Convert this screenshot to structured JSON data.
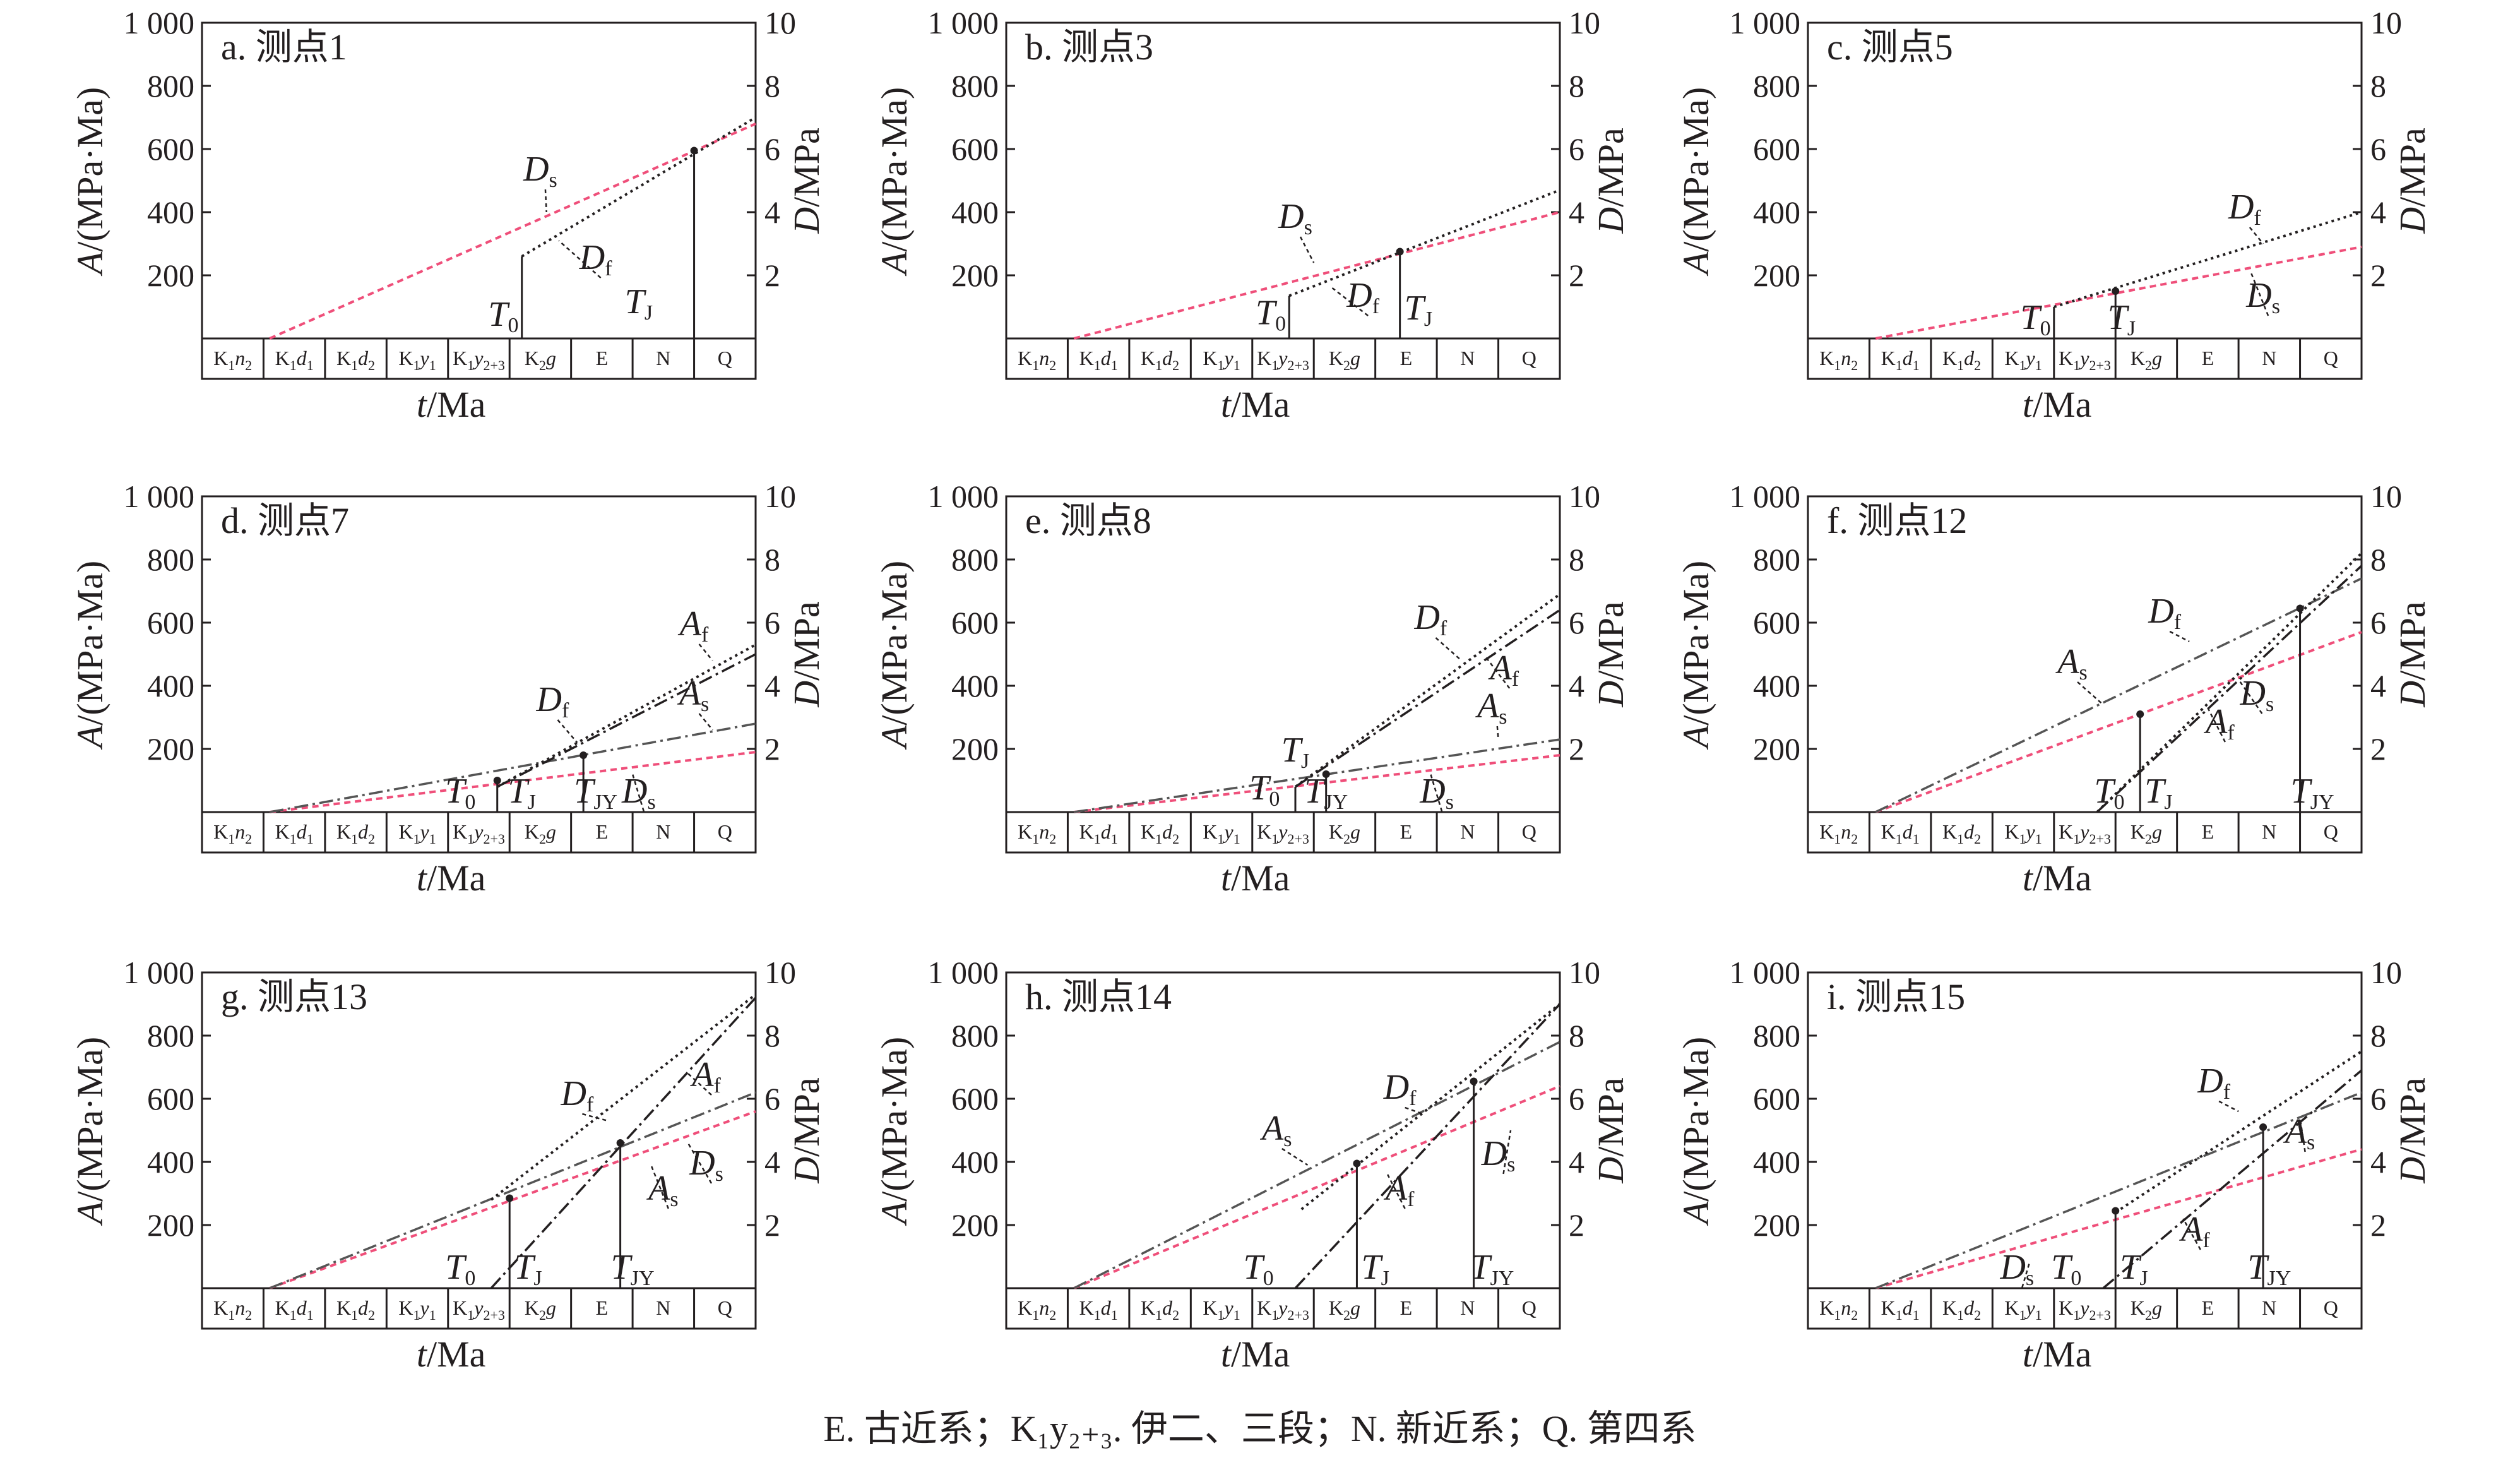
{
  "caption": "E. 古近系；K₁y₂₊₃. 伊二、三段；N. 新近系；Q. 第四系",
  "colors": {
    "Ds": "#ef4f7a",
    "Df": "#231f20",
    "As": "#555555",
    "Af": "#231f20",
    "frame": "#231f20"
  },
  "axes": {
    "left_label": "A/(MPa·Ma)",
    "right_label": "D/MPa",
    "x_label": "t/Ma",
    "left_ticks": [
      "200",
      "400",
      "600",
      "800",
      "1 000"
    ],
    "right_ticks": [
      "2",
      "4",
      "6",
      "8",
      "10"
    ],
    "strata": [
      {
        "base": "K",
        "sub": "1",
        "ital": "n",
        "isub": "2"
      },
      {
        "base": "K",
        "sub": "1",
        "ital": "d",
        "isub": "1"
      },
      {
        "base": "K",
        "sub": "1",
        "ital": "d",
        "isub": "2"
      },
      {
        "base": "K",
        "sub": "1",
        "ital": "y",
        "isub": "1"
      },
      {
        "base": "K",
        "sub": "1",
        "ital": "y",
        "isub": "2+3"
      },
      {
        "base": "K",
        "sub": "2",
        "ital": "g",
        "isub": ""
      },
      {
        "base": "E",
        "sub": "",
        "ital": "",
        "isub": ""
      },
      {
        "base": "N",
        "sub": "",
        "ital": "",
        "isub": ""
      },
      {
        "base": "Q",
        "sub": "",
        "ital": "",
        "isub": ""
      }
    ]
  },
  "chart_data": [
    {
      "type": "line",
      "title": "a. 测点1",
      "xlabel": "t/Ma",
      "ylabel": "A/(MPa·Ma)",
      "y2label": "D/MPa",
      "ylim": [
        0,
        1000
      ],
      "y2lim": [
        0,
        10
      ],
      "xlim": [
        0,
        9
      ],
      "series": [
        {
          "name": "Ds",
          "style": "Ds",
          "x": [
            1.1,
            9
          ],
          "y": [
            0,
            6.8
          ]
        },
        {
          "name": "Df",
          "style": "Df",
          "x": [
            5.2,
            9
          ],
          "y": [
            2.6,
            7.0
          ]
        }
      ],
      "verticals": [
        {
          "x": 5.2,
          "top": 2.6,
          "dot": false
        },
        {
          "x": 8.0,
          "top": 5.95,
          "dot": true
        }
      ],
      "labels": [
        {
          "name": "Ds",
          "x": 5.5,
          "y": 5.0,
          "sub": "s",
          "lx": 5.6,
          "ly": 4.0
        },
        {
          "name": "Df",
          "x": 6.4,
          "y": 2.2,
          "sub": "f",
          "lx": 5.8,
          "ly": 3.1
        },
        {
          "name": "T",
          "x": 4.9,
          "y": 0.4,
          "sub": "0"
        },
        {
          "name": "T",
          "x": 7.1,
          "y": 0.8,
          "sub": "J"
        }
      ]
    },
    {
      "type": "line",
      "title": "b. 测点3",
      "xlabel": "t/Ma",
      "ylabel": "A/(MPa·Ma)",
      "y2label": "D/MPa",
      "ylim": [
        0,
        1000
      ],
      "y2lim": [
        0,
        10
      ],
      "xlim": [
        0,
        9
      ],
      "series": [
        {
          "name": "Ds",
          "style": "Ds",
          "x": [
            1.1,
            9
          ],
          "y": [
            0,
            4.0
          ]
        },
        {
          "name": "Df",
          "style": "Df",
          "x": [
            4.6,
            9
          ],
          "y": [
            1.35,
            4.7
          ]
        }
      ],
      "verticals": [
        {
          "x": 4.6,
          "top": 1.35,
          "dot": false
        },
        {
          "x": 6.4,
          "top": 2.75,
          "dot": true
        }
      ],
      "labels": [
        {
          "name": "Ds",
          "x": 4.7,
          "y": 3.5,
          "sub": "s",
          "lx": 5.0,
          "ly": 2.4
        },
        {
          "name": "Df",
          "x": 5.8,
          "y": 1.0,
          "sub": "f",
          "lx": 5.3,
          "ly": 1.6
        },
        {
          "name": "T",
          "x": 4.3,
          "y": 0.45,
          "sub": "0"
        },
        {
          "name": "T",
          "x": 6.7,
          "y": 0.6,
          "sub": "J"
        }
      ]
    },
    {
      "type": "line",
      "title": "c. 测点5",
      "xlabel": "t/Ma",
      "ylabel": "A/(MPa·Ma)",
      "y2label": "D/MPa",
      "ylim": [
        0,
        1000
      ],
      "y2lim": [
        0,
        10
      ],
      "xlim": [
        0,
        9
      ],
      "series": [
        {
          "name": "Ds",
          "style": "Ds",
          "x": [
            1.1,
            9
          ],
          "y": [
            0,
            2.9
          ]
        },
        {
          "name": "Df",
          "style": "Df",
          "x": [
            4.0,
            9
          ],
          "y": [
            1.0,
            4.0
          ]
        }
      ],
      "verticals": [
        {
          "x": 4.0,
          "top": 1.0,
          "dot": false
        },
        {
          "x": 5.0,
          "top": 1.5,
          "dot": true
        }
      ],
      "labels": [
        {
          "name": "Df",
          "x": 7.1,
          "y": 3.8,
          "sub": "f",
          "lx": 7.4,
          "ly": 3.0
        },
        {
          "name": "Ds",
          "x": 7.4,
          "y": 1.0,
          "sub": "s",
          "lx": 7.2,
          "ly": 2.1
        },
        {
          "name": "T",
          "x": 3.7,
          "y": 0.3,
          "sub": "0"
        },
        {
          "name": "T",
          "x": 5.1,
          "y": 0.3,
          "sub": "J"
        }
      ]
    },
    {
      "type": "line",
      "title": "d. 测点7",
      "xlabel": "t/Ma",
      "ylabel": "A/(MPa·Ma)",
      "y2label": "D/MPa",
      "ylim": [
        0,
        1000
      ],
      "y2lim": [
        0,
        10
      ],
      "xlim": [
        0,
        9
      ],
      "series": [
        {
          "name": "Ds",
          "style": "Ds",
          "x": [
            1.1,
            9
          ],
          "y": [
            0,
            1.9
          ]
        },
        {
          "name": "As",
          "style": "As",
          "x": [
            1.1,
            9
          ],
          "y": [
            0,
            2.8
          ]
        },
        {
          "name": "Df",
          "style": "Df",
          "x": [
            4.8,
            9
          ],
          "y": [
            0.8,
            5.3
          ]
        },
        {
          "name": "Af",
          "style": "Af",
          "x": [
            4.8,
            9
          ],
          "y": [
            0.8,
            5.0
          ]
        }
      ],
      "verticals": [
        {
          "x": 4.8,
          "top": 1.0,
          "dot": true
        },
        {
          "x": 6.2,
          "top": 1.8,
          "dot": true
        }
      ],
      "labels": [
        {
          "name": "Af",
          "x": 8.0,
          "y": 5.6,
          "sub": "f",
          "lx": 8.3,
          "ly": 4.8
        },
        {
          "name": "As",
          "x": 8.0,
          "y": 3.4,
          "sub": "s",
          "lx": 8.3,
          "ly": 2.6
        },
        {
          "name": "Df",
          "x": 5.7,
          "y": 3.2,
          "sub": "f",
          "lx": 6.1,
          "ly": 2.2
        },
        {
          "name": "T",
          "x": 4.2,
          "y": 0.3,
          "sub": "0"
        },
        {
          "name": "T",
          "x": 5.2,
          "y": 0.3,
          "sub": "J"
        },
        {
          "name": "T",
          "x": 6.4,
          "y": 0.3,
          "sub": "JY"
        },
        {
          "name": "Ds",
          "x": 7.1,
          "y": 0.3,
          "sub": "s",
          "lx": 7.0,
          "ly": 1.2
        }
      ]
    },
    {
      "type": "line",
      "title": "e. 测点8",
      "xlabel": "t/Ma",
      "ylabel": "A/(MPa·Ma)",
      "y2label": "D/MPa",
      "ylim": [
        0,
        1000
      ],
      "y2lim": [
        0,
        10
      ],
      "xlim": [
        0,
        9
      ],
      "series": [
        {
          "name": "Ds",
          "style": "Ds",
          "x": [
            1.1,
            9
          ],
          "y": [
            0,
            1.8
          ]
        },
        {
          "name": "As",
          "style": "As",
          "x": [
            1.1,
            9
          ],
          "y": [
            0,
            2.3
          ]
        },
        {
          "name": "Df",
          "style": "Df",
          "x": [
            4.7,
            9
          ],
          "y": [
            0.8,
            6.9
          ]
        },
        {
          "name": "Af",
          "style": "Af",
          "x": [
            4.7,
            9
          ],
          "y": [
            0.8,
            6.4
          ]
        }
      ],
      "verticals": [
        {
          "x": 4.7,
          "top": 0.8,
          "dot": false
        },
        {
          "x": 5.2,
          "top": 1.2,
          "dot": true
        }
      ],
      "labels": [
        {
          "name": "Df",
          "x": 6.9,
          "y": 5.8,
          "sub": "f",
          "lx": 7.4,
          "ly": 4.8
        },
        {
          "name": "Af",
          "x": 8.1,
          "y": 4.2,
          "sub": "f",
          "lx": 7.8,
          "ly": 4.9
        },
        {
          "name": "As",
          "x": 7.9,
          "y": 3.0,
          "sub": "s",
          "lx": 8.0,
          "ly": 2.3
        },
        {
          "name": "T",
          "x": 4.7,
          "y": 1.6,
          "sub": "J"
        },
        {
          "name": "T",
          "x": 4.2,
          "y": 0.4,
          "sub": "0"
        },
        {
          "name": "T",
          "x": 5.2,
          "y": 0.3,
          "sub": "JY"
        },
        {
          "name": "Ds",
          "x": 7.0,
          "y": 0.3,
          "sub": "s",
          "lx": 6.9,
          "ly": 1.2
        }
      ]
    },
    {
      "type": "line",
      "title": "f. 测点12",
      "xlabel": "t/Ma",
      "ylabel": "A/(MPa·Ma)",
      "y2label": "D/MPa",
      "ylim": [
        0,
        1000
      ],
      "y2lim": [
        0,
        10
      ],
      "xlim": [
        0,
        9
      ],
      "series": [
        {
          "name": "Ds",
          "style": "Ds",
          "x": [
            1.1,
            9
          ],
          "y": [
            0,
            5.7
          ]
        },
        {
          "name": "As",
          "style": "As",
          "x": [
            1.1,
            9
          ],
          "y": [
            0,
            7.4
          ]
        },
        {
          "name": "Df",
          "style": "Df",
          "x": [
            4.7,
            9
          ],
          "y": [
            0.0,
            8.2
          ]
        },
        {
          "name": "Af",
          "style": "Af",
          "x": [
            4.7,
            9
          ],
          "y": [
            0.0,
            7.8
          ]
        }
      ],
      "verticals": [
        {
          "x": 5.4,
          "top": 3.1,
          "dot": true
        },
        {
          "x": 8.0,
          "top": 6.45,
          "dot": true
        }
      ],
      "labels": [
        {
          "name": "Df",
          "x": 5.8,
          "y": 6.0,
          "sub": "f",
          "lx": 6.2,
          "ly": 5.4
        },
        {
          "name": "As",
          "x": 4.3,
          "y": 4.4,
          "sub": "s",
          "lx": 4.8,
          "ly": 3.4
        },
        {
          "name": "Ds",
          "x": 7.3,
          "y": 3.4,
          "sub": "s",
          "lx": 7.0,
          "ly": 4.2
        },
        {
          "name": "Af",
          "x": 6.7,
          "y": 2.5,
          "sub": "f",
          "lx": 6.5,
          "ly": 3.3
        },
        {
          "name": "T",
          "x": 4.9,
          "y": 0.3,
          "sub": "0"
        },
        {
          "name": "T",
          "x": 5.7,
          "y": 0.3,
          "sub": "J"
        },
        {
          "name": "T",
          "x": 8.2,
          "y": 0.3,
          "sub": "JY"
        }
      ]
    },
    {
      "type": "line",
      "title": "g. 测点13",
      "xlabel": "t/Ma",
      "ylabel": "A/(MPa·Ma)",
      "y2label": "D/MPa",
      "ylim": [
        0,
        1000
      ],
      "y2lim": [
        0,
        10
      ],
      "xlim": [
        0,
        9
      ],
      "series": [
        {
          "name": "Ds",
          "style": "Ds",
          "x": [
            1.1,
            9
          ],
          "y": [
            0,
            5.6
          ]
        },
        {
          "name": "As",
          "style": "As",
          "x": [
            1.1,
            9
          ],
          "y": [
            0,
            6.2
          ]
        },
        {
          "name": "Df",
          "style": "Df",
          "x": [
            4.7,
            9
          ],
          "y": [
            2.8,
            9.3
          ]
        },
        {
          "name": "Af",
          "style": "Af",
          "x": [
            4.7,
            9
          ],
          "y": [
            0.0,
            9.2
          ]
        }
      ],
      "verticals": [
        {
          "x": 5.0,
          "top": 2.85,
          "dot": true
        },
        {
          "x": 6.8,
          "top": 4.6,
          "dot": true
        }
      ],
      "labels": [
        {
          "name": "Df",
          "x": 6.1,
          "y": 5.8,
          "sub": "f",
          "lx": 6.6,
          "ly": 5.3
        },
        {
          "name": "Af",
          "x": 8.2,
          "y": 6.4,
          "sub": "f",
          "lx": 7.9,
          "ly": 6.8
        },
        {
          "name": "Ds",
          "x": 8.2,
          "y": 3.6,
          "sub": "s",
          "lx": 7.9,
          "ly": 4.6
        },
        {
          "name": "As",
          "x": 7.5,
          "y": 2.8,
          "sub": "s",
          "lx": 7.3,
          "ly": 3.9
        },
        {
          "name": "T",
          "x": 4.2,
          "y": 0.3,
          "sub": "0"
        },
        {
          "name": "T",
          "x": 5.3,
          "y": 0.3,
          "sub": "J"
        },
        {
          "name": "T",
          "x": 7.0,
          "y": 0.3,
          "sub": "JY"
        }
      ]
    },
    {
      "type": "line",
      "title": "h. 测点14",
      "xlabel": "t/Ma",
      "ylabel": "A/(MPa·Ma)",
      "y2label": "D/MPa",
      "ylim": [
        0,
        1000
      ],
      "y2lim": [
        0,
        10
      ],
      "xlim": [
        0,
        9
      ],
      "series": [
        {
          "name": "Ds",
          "style": "Ds",
          "x": [
            1.1,
            9
          ],
          "y": [
            0,
            6.4
          ]
        },
        {
          "name": "As",
          "style": "As",
          "x": [
            1.1,
            9
          ],
          "y": [
            0,
            7.8
          ]
        },
        {
          "name": "Df",
          "style": "Df",
          "x": [
            4.8,
            9
          ],
          "y": [
            2.5,
            9.0
          ]
        },
        {
          "name": "Af",
          "style": "Af",
          "x": [
            4.7,
            9
          ],
          "y": [
            0.0,
            9.0
          ]
        }
      ],
      "verticals": [
        {
          "x": 5.7,
          "top": 3.95,
          "dot": true
        },
        {
          "x": 7.6,
          "top": 6.55,
          "dot": true
        }
      ],
      "labels": [
        {
          "name": "Df",
          "x": 6.4,
          "y": 6.0,
          "sub": "f",
          "lx": 6.8,
          "ly": 5.5
        },
        {
          "name": "As",
          "x": 4.4,
          "y": 4.7,
          "sub": "s",
          "lx": 4.9,
          "ly": 3.9
        },
        {
          "name": "Af",
          "x": 6.4,
          "y": 2.8,
          "sub": "f",
          "lx": 6.2,
          "ly": 3.6
        },
        {
          "name": "Ds",
          "x": 8.0,
          "y": 3.9,
          "sub": "s",
          "lx": 8.2,
          "ly": 5.0
        },
        {
          "name": "T",
          "x": 4.1,
          "y": 0.3,
          "sub": "0"
        },
        {
          "name": "T",
          "x": 6.0,
          "y": 0.3,
          "sub": "J"
        },
        {
          "name": "T",
          "x": 7.9,
          "y": 0.3,
          "sub": "JY"
        }
      ]
    },
    {
      "type": "line",
      "title": "i. 测点15",
      "xlabel": "t/Ma",
      "ylabel": "A/(MPa·Ma)",
      "y2label": "D/MPa",
      "ylim": [
        0,
        1000
      ],
      "y2lim": [
        0,
        10
      ],
      "xlim": [
        0,
        9
      ],
      "series": [
        {
          "name": "Ds",
          "style": "Ds",
          "x": [
            1.1,
            9
          ],
          "y": [
            0,
            4.4
          ]
        },
        {
          "name": "As",
          "style": "As",
          "x": [
            1.1,
            9
          ],
          "y": [
            0,
            6.2
          ]
        },
        {
          "name": "Df",
          "style": "Df",
          "x": [
            5.0,
            9
          ],
          "y": [
            2.4,
            7.5
          ]
        },
        {
          "name": "Af",
          "style": "Af",
          "x": [
            4.8,
            9
          ],
          "y": [
            0.0,
            6.9
          ]
        }
      ],
      "verticals": [
        {
          "x": 5.0,
          "top": 2.45,
          "dot": true
        },
        {
          "x": 7.4,
          "top": 5.1,
          "dot": true
        }
      ],
      "labels": [
        {
          "name": "Df",
          "x": 6.6,
          "y": 6.2,
          "sub": "f",
          "lx": 7.0,
          "ly": 5.6
        },
        {
          "name": "As",
          "x": 8.0,
          "y": 4.6,
          "sub": "s",
          "lx": 8.0,
          "ly": 5.4
        },
        {
          "name": "Af",
          "x": 6.3,
          "y": 1.5,
          "sub": "f",
          "lx": 6.1,
          "ly": 2.2
        },
        {
          "name": "Ds",
          "x": 3.4,
          "y": 0.3,
          "sub": "s",
          "lx": 3.6,
          "ly": 0.8
        },
        {
          "name": "T",
          "x": 4.2,
          "y": 0.3,
          "sub": "0"
        },
        {
          "name": "T",
          "x": 5.3,
          "y": 0.3,
          "sub": "J"
        },
        {
          "name": "T",
          "x": 7.5,
          "y": 0.3,
          "sub": "JY"
        }
      ]
    }
  ]
}
